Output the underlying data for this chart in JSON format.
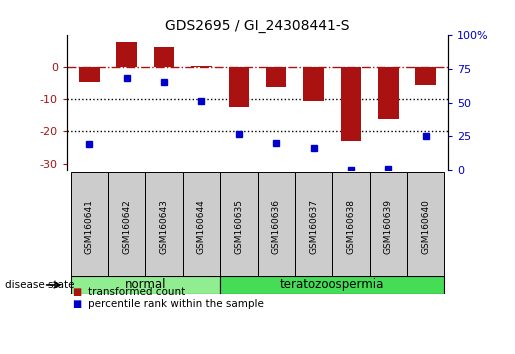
{
  "title": "GDS2695 / GI_24308441-S",
  "samples": [
    "GSM160641",
    "GSM160642",
    "GSM160643",
    "GSM160644",
    "GSM160635",
    "GSM160636",
    "GSM160637",
    "GSM160638",
    "GSM160639",
    "GSM160640"
  ],
  "transformed_count": [
    -4.5,
    8.0,
    6.5,
    0.5,
    -12.5,
    -6.0,
    -10.5,
    -23.0,
    -16.0,
    -5.5
  ],
  "percentile_rank": [
    19,
    68,
    65,
    51,
    27,
    20,
    16,
    0,
    1,
    25
  ],
  "groups": [
    {
      "label": "normal",
      "indices": [
        0,
        1,
        2,
        3
      ],
      "color": "#90EE90"
    },
    {
      "label": "teratozoospermia",
      "indices": [
        4,
        5,
        6,
        7,
        8,
        9
      ],
      "color": "#44DD55"
    }
  ],
  "bar_color": "#AA1111",
  "dot_color": "#0000CC",
  "left_ylim": [
    -32,
    10
  ],
  "left_yticks": [
    0,
    -10,
    -20,
    -30
  ],
  "right_ylim": [
    0,
    100
  ],
  "right_yticks": [
    0,
    25,
    50,
    75,
    100
  ],
  "right_yticklabels": [
    "0",
    "25",
    "50",
    "75",
    "100%"
  ],
  "dotted_lines": [
    -10,
    -20
  ],
  "legend_items": [
    {
      "label": "transformed count",
      "color": "#AA1111"
    },
    {
      "label": "percentile rank within the sample",
      "color": "#0000CC"
    }
  ],
  "disease_state_label": "disease state",
  "background_color": "#ffffff",
  "bar_width": 0.55,
  "sample_box_color": "#CCCCCC"
}
